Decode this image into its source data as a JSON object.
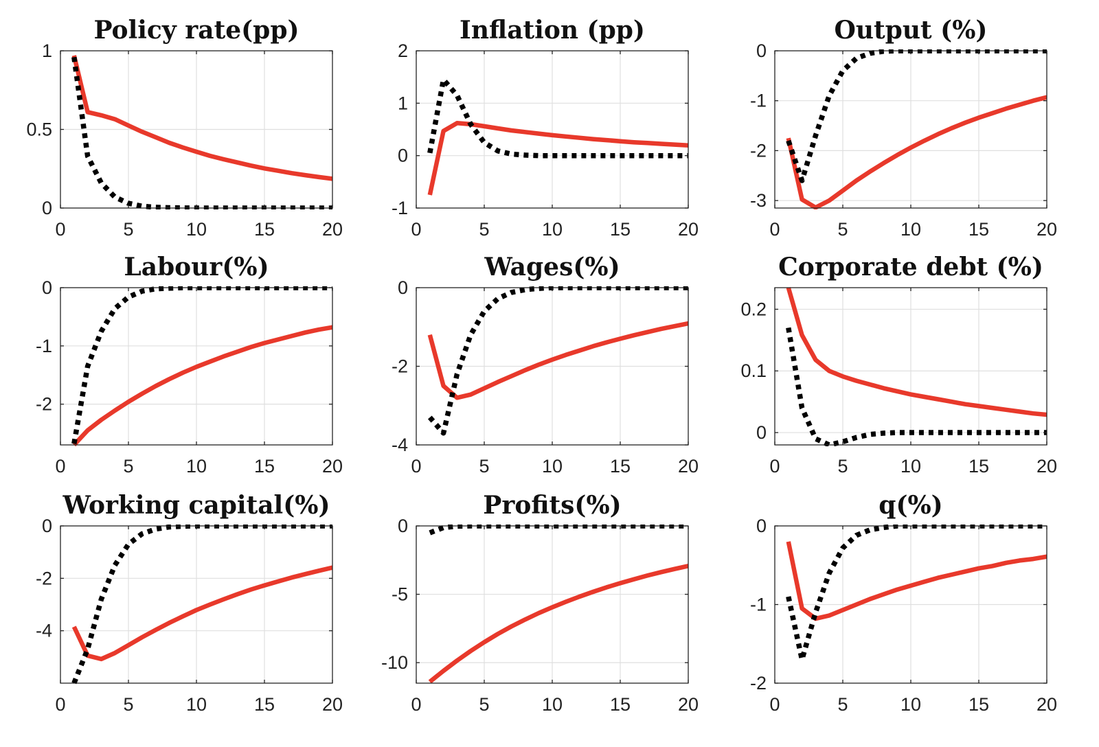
{
  "colors": {
    "series_a": "#e8392b",
    "series_b": "#000000"
  },
  "chart_data": [
    {
      "type": "line",
      "title": "Policy rate(pp)",
      "xlim": [
        0,
        20
      ],
      "ylim": [
        0,
        1
      ],
      "xticks": [
        0,
        5,
        10,
        15,
        20
      ],
      "xtick_labels": [
        "0",
        "5",
        "10",
        "15",
        "20"
      ],
      "yticks": [
        0,
        0.5,
        1
      ],
      "ytick_labels": [
        "0",
        "0.5",
        "1"
      ],
      "grid": true,
      "x": [
        1,
        2,
        3,
        4,
        5,
        6,
        7,
        8,
        9,
        10,
        11,
        12,
        13,
        14,
        15,
        16,
        17,
        18,
        19,
        20
      ],
      "series": [
        {
          "style": "solid",
          "color": "#e8392b",
          "values": [
            0.97,
            0.61,
            0.59,
            0.565,
            0.525,
            0.485,
            0.45,
            0.415,
            0.385,
            0.358,
            0.332,
            0.31,
            0.29,
            0.27,
            0.252,
            0.237,
            0.222,
            0.209,
            0.197,
            0.186
          ]
        },
        {
          "style": "dotted",
          "color": "#000000",
          "values": [
            0.96,
            0.33,
            0.16,
            0.07,
            0.03,
            0.012,
            0.005,
            0.002,
            0.001,
            0,
            0,
            0,
            0,
            0,
            0,
            0,
            0,
            0,
            0,
            0
          ]
        }
      ]
    },
    {
      "type": "line",
      "title": "Inflation (pp)",
      "xlim": [
        0,
        20
      ],
      "ylim": [
        -1,
        2
      ],
      "xticks": [
        0,
        5,
        10,
        15,
        20
      ],
      "xtick_labels": [
        "0",
        "5",
        "10",
        "15",
        "20"
      ],
      "yticks": [
        -1,
        0,
        1,
        2
      ],
      "ytick_labels": [
        "-1",
        "0",
        "1",
        "2"
      ],
      "grid": true,
      "x": [
        1,
        2,
        3,
        4,
        5,
        6,
        7,
        8,
        9,
        10,
        11,
        12,
        13,
        14,
        15,
        16,
        17,
        18,
        19,
        20
      ],
      "series": [
        {
          "style": "solid",
          "color": "#e8392b",
          "values": [
            -0.75,
            0.47,
            0.62,
            0.6,
            0.56,
            0.52,
            0.48,
            0.45,
            0.42,
            0.39,
            0.365,
            0.34,
            0.315,
            0.295,
            0.275,
            0.255,
            0.24,
            0.225,
            0.21,
            0.195
          ]
        },
        {
          "style": "dotted",
          "color": "#000000",
          "values": [
            0.05,
            1.45,
            1.15,
            0.6,
            0.25,
            0.09,
            0.03,
            0.01,
            0,
            0,
            0,
            0,
            0,
            0,
            0,
            0,
            0,
            0,
            0,
            0
          ]
        }
      ]
    },
    {
      "type": "line",
      "title": "Output (%)",
      "xlim": [
        0,
        20
      ],
      "ylim": [
        -3.15,
        0
      ],
      "xticks": [
        0,
        5,
        10,
        15,
        20
      ],
      "xtick_labels": [
        "0",
        "5",
        "10",
        "15",
        "20"
      ],
      "yticks": [
        -3,
        -2,
        -1,
        0
      ],
      "ytick_labels": [
        "-3",
        "-2",
        "-1",
        "0"
      ],
      "grid": true,
      "x": [
        1,
        2,
        3,
        4,
        5,
        6,
        7,
        8,
        9,
        10,
        11,
        12,
        13,
        14,
        15,
        16,
        17,
        18,
        19,
        20
      ],
      "series": [
        {
          "style": "solid",
          "color": "#e8392b",
          "values": [
            -1.75,
            -2.98,
            -3.14,
            -3.0,
            -2.8,
            -2.6,
            -2.42,
            -2.25,
            -2.09,
            -1.94,
            -1.8,
            -1.67,
            -1.55,
            -1.44,
            -1.34,
            -1.25,
            -1.16,
            -1.08,
            -1.0,
            -0.93
          ]
        },
        {
          "style": "dotted",
          "color": "#000000",
          "values": [
            -1.8,
            -2.6,
            -1.7,
            -0.9,
            -0.4,
            -0.15,
            -0.05,
            -0.01,
            0,
            0,
            0,
            0,
            0,
            0,
            0,
            0,
            0,
            0,
            0,
            0
          ]
        }
      ]
    },
    {
      "type": "line",
      "title": "Labour(%)",
      "xlim": [
        0,
        20
      ],
      "ylim": [
        -2.7,
        0
      ],
      "xticks": [
        0,
        5,
        10,
        15,
        20
      ],
      "xtick_labels": [
        "0",
        "5",
        "10",
        "15",
        "20"
      ],
      "yticks": [
        -2,
        -1,
        0
      ],
      "ytick_labels": [
        "-2",
        "-1",
        "0"
      ],
      "grid": true,
      "x": [
        1,
        2,
        3,
        4,
        5,
        6,
        7,
        8,
        9,
        10,
        11,
        12,
        13,
        14,
        15,
        16,
        17,
        18,
        19,
        20
      ],
      "series": [
        {
          "style": "solid",
          "color": "#e8392b",
          "values": [
            -2.7,
            -2.45,
            -2.27,
            -2.11,
            -1.96,
            -1.82,
            -1.69,
            -1.57,
            -1.46,
            -1.36,
            -1.27,
            -1.18,
            -1.1,
            -1.02,
            -0.95,
            -0.89,
            -0.83,
            -0.77,
            -0.72,
            -0.68
          ]
        },
        {
          "style": "dotted",
          "color": "#000000",
          "values": [
            -2.68,
            -1.35,
            -0.75,
            -0.36,
            -0.16,
            -0.06,
            -0.02,
            -0.01,
            0,
            0,
            0,
            0,
            0,
            0,
            0,
            0,
            0,
            0,
            0,
            0
          ]
        }
      ]
    },
    {
      "type": "line",
      "title": "Wages(%)",
      "xlim": [
        0,
        20
      ],
      "ylim": [
        -4,
        0
      ],
      "xticks": [
        0,
        5,
        10,
        15,
        20
      ],
      "xtick_labels": [
        "0",
        "5",
        "10",
        "15",
        "20"
      ],
      "yticks": [
        -4,
        -2,
        0
      ],
      "ytick_labels": [
        "-4",
        "-2",
        "0"
      ],
      "grid": true,
      "x": [
        1,
        2,
        3,
        4,
        5,
        6,
        7,
        8,
        9,
        10,
        11,
        12,
        13,
        14,
        15,
        16,
        17,
        18,
        19,
        20
      ],
      "series": [
        {
          "style": "solid",
          "color": "#e8392b",
          "values": [
            -1.2,
            -2.5,
            -2.8,
            -2.72,
            -2.56,
            -2.4,
            -2.25,
            -2.1,
            -1.96,
            -1.83,
            -1.71,
            -1.6,
            -1.49,
            -1.39,
            -1.3,
            -1.21,
            -1.13,
            -1.05,
            -0.98,
            -0.91
          ]
        },
        {
          "style": "dotted",
          "color": "#000000",
          "values": [
            -3.3,
            -3.7,
            -2.2,
            -1.2,
            -0.6,
            -0.28,
            -0.12,
            -0.05,
            -0.02,
            0,
            0,
            0,
            0,
            0,
            0,
            0,
            0,
            0,
            0,
            0
          ]
        }
      ]
    },
    {
      "type": "line",
      "title": "Corporate debt (%)",
      "xlim": [
        0,
        20
      ],
      "ylim": [
        -0.02,
        0.235
      ],
      "xticks": [
        0,
        5,
        10,
        15,
        20
      ],
      "xtick_labels": [
        "0",
        "5",
        "10",
        "15",
        "20"
      ],
      "yticks": [
        0,
        0.1,
        0.2
      ],
      "ytick_labels": [
        "0",
        "0.1",
        "0.2"
      ],
      "grid": true,
      "x": [
        1,
        2,
        3,
        4,
        5,
        6,
        7,
        8,
        9,
        10,
        11,
        12,
        13,
        14,
        15,
        16,
        17,
        18,
        19,
        20
      ],
      "series": [
        {
          "style": "solid",
          "color": "#e8392b",
          "values": [
            0.235,
            0.158,
            0.118,
            0.1,
            0.091,
            0.084,
            0.078,
            0.072,
            0.067,
            0.062,
            0.058,
            0.054,
            0.05,
            0.046,
            0.043,
            0.04,
            0.037,
            0.034,
            0.031,
            0.029
          ]
        },
        {
          "style": "dotted",
          "color": "#000000",
          "values": [
            0.17,
            0.04,
            -0.01,
            -0.02,
            -0.015,
            -0.008,
            -0.003,
            -0.001,
            0,
            0,
            0,
            0,
            0,
            0,
            0,
            0,
            0,
            0,
            0,
            0
          ]
        }
      ]
    },
    {
      "type": "line",
      "title": "Working capital(%)",
      "xlim": [
        0,
        20
      ],
      "ylim": [
        -6,
        0
      ],
      "xticks": [
        0,
        5,
        10,
        15,
        20
      ],
      "xtick_labels": [
        "0",
        "5",
        "10",
        "15",
        "20"
      ],
      "yticks": [
        -4,
        -2,
        0
      ],
      "ytick_labels": [
        "-4",
        "-2",
        "0"
      ],
      "grid": true,
      "x": [
        1,
        2,
        3,
        4,
        5,
        6,
        7,
        8,
        9,
        10,
        11,
        12,
        13,
        14,
        15,
        16,
        17,
        18,
        19,
        20
      ],
      "series": [
        {
          "style": "solid",
          "color": "#e8392b",
          "values": [
            -3.85,
            -4.95,
            -5.08,
            -4.85,
            -4.55,
            -4.25,
            -3.97,
            -3.7,
            -3.45,
            -3.21,
            -3.0,
            -2.8,
            -2.61,
            -2.43,
            -2.27,
            -2.12,
            -1.97,
            -1.84,
            -1.71,
            -1.59
          ]
        },
        {
          "style": "dotted",
          "color": "#000000",
          "values": [
            -6.0,
            -4.7,
            -2.8,
            -1.5,
            -0.7,
            -0.3,
            -0.12,
            -0.04,
            -0.01,
            0,
            0,
            0,
            0,
            0,
            0,
            0,
            0,
            0,
            0,
            0
          ]
        }
      ]
    },
    {
      "type": "line",
      "title": "Profits(%)",
      "xlim": [
        0,
        20
      ],
      "ylim": [
        -11.5,
        0
      ],
      "xticks": [
        0,
        5,
        10,
        15,
        20
      ],
      "xtick_labels": [
        "0",
        "5",
        "10",
        "15",
        "20"
      ],
      "yticks": [
        -10,
        -5,
        0
      ],
      "ytick_labels": [
        "-10",
        "-5",
        "0"
      ],
      "grid": true,
      "x": [
        1,
        2,
        3,
        4,
        5,
        6,
        7,
        8,
        9,
        10,
        11,
        12,
        13,
        14,
        15,
        16,
        17,
        18,
        19,
        20
      ],
      "series": [
        {
          "style": "solid",
          "color": "#e8392b",
          "values": [
            -11.4,
            -10.6,
            -9.85,
            -9.15,
            -8.5,
            -7.9,
            -7.35,
            -6.85,
            -6.38,
            -5.95,
            -5.55,
            -5.17,
            -4.82,
            -4.49,
            -4.19,
            -3.9,
            -3.63,
            -3.38,
            -3.15,
            -2.93
          ]
        },
        {
          "style": "dotted",
          "color": "#000000",
          "values": [
            -0.5,
            -0.12,
            -0.02,
            0,
            0,
            0,
            0,
            0,
            0,
            0,
            0,
            0,
            0,
            0,
            0,
            0,
            0,
            0,
            0,
            0
          ]
        }
      ]
    },
    {
      "type": "line",
      "title": "q(%)",
      "xlim": [
        0,
        20
      ],
      "ylim": [
        -2,
        0
      ],
      "xticks": [
        0,
        5,
        10,
        15,
        20
      ],
      "xtick_labels": [
        "0",
        "5",
        "10",
        "15",
        "20"
      ],
      "yticks": [
        -2,
        -1,
        0
      ],
      "ytick_labels": [
        "-2",
        "-1",
        "0"
      ],
      "grid": true,
      "x": [
        1,
        2,
        3,
        4,
        5,
        6,
        7,
        8,
        9,
        10,
        11,
        12,
        13,
        14,
        15,
        16,
        17,
        18,
        19,
        20
      ],
      "series": [
        {
          "style": "solid",
          "color": "#e8392b",
          "values": [
            -0.2,
            -1.05,
            -1.18,
            -1.14,
            -1.07,
            -1.0,
            -0.93,
            -0.87,
            -0.81,
            -0.76,
            -0.71,
            -0.66,
            -0.62,
            -0.58,
            -0.54,
            -0.51,
            -0.47,
            -0.44,
            -0.42,
            -0.39
          ]
        },
        {
          "style": "dotted",
          "color": "#000000",
          "values": [
            -0.9,
            -1.7,
            -1.1,
            -0.6,
            -0.28,
            -0.12,
            -0.05,
            -0.02,
            0,
            0,
            0,
            0,
            0,
            0,
            0,
            0,
            0,
            0,
            0,
            0
          ]
        }
      ]
    }
  ]
}
